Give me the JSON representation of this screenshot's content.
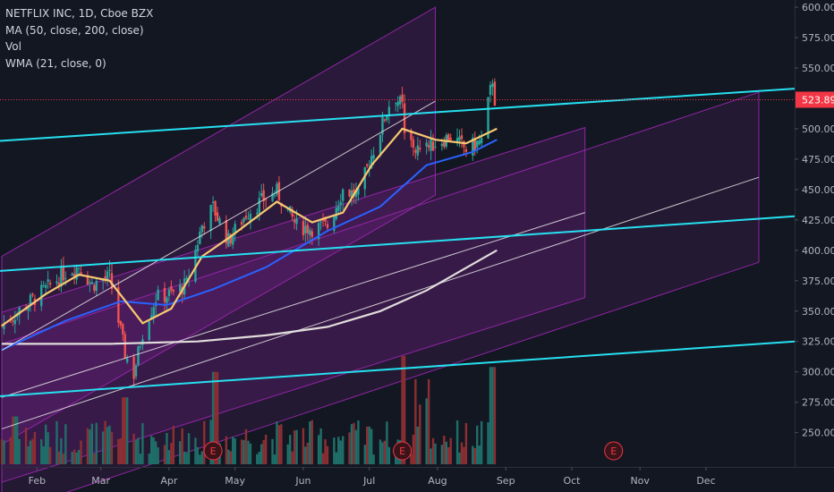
{
  "colors": {
    "background": "#131722",
    "candle_up": "#26a69a",
    "candle_down": "#ef5350",
    "vol_up": "#1f6f69",
    "vol_down": "#8c2f33",
    "ma50": "#2962ff",
    "ma200": "#e0dcdc",
    "wma21": "#f6c870",
    "channel": "#9c27b0",
    "trendline": "#26e0f0",
    "axis_text": "#b2b5be",
    "price_tag": "#f23645",
    "earnings": "#f23645"
  },
  "legend": {
    "symbol_line": "NETFLIX INC, 1D, Cboe BZX",
    "ma_line": "MA (50, close, 200, close)",
    "vol_line": "Vol",
    "wma_line": "WMA (21, close, 0)"
  },
  "chart_data": {
    "type": "candlestick",
    "title": "NETFLIX INC, 1D, Cboe BZX",
    "x_ticks": [
      "Feb",
      "Mar",
      "Apr",
      "May",
      "Jun",
      "Jul",
      "Aug",
      "Sep",
      "Oct",
      "Nov",
      "Dec"
    ],
    "y_ticks": [
      250,
      275,
      300,
      325,
      350,
      375,
      400,
      425,
      450,
      475,
      500,
      525,
      550,
      575,
      600
    ],
    "ylim": [
      235,
      603
    ],
    "last_price": "523.89",
    "last_price_value": 523.89,
    "date_range": [
      "2020-01-16",
      "2020-12-25"
    ],
    "earnings_markers": [
      {
        "label": "E",
        "date": "2020-04-21"
      },
      {
        "label": "E",
        "date": "2020-07-16"
      },
      {
        "label": "E",
        "date": "2020-10-20"
      }
    ],
    "price_points": [
      {
        "date": "2020-01-16",
        "close": 338
      },
      {
        "date": "2020-01-27",
        "close": 355
      },
      {
        "date": "2020-02-05",
        "close": 368
      },
      {
        "date": "2020-02-14",
        "close": 382
      },
      {
        "date": "2020-02-20",
        "close": 387
      },
      {
        "date": "2020-02-26",
        "close": 372
      },
      {
        "date": "2020-03-05",
        "close": 378
      },
      {
        "date": "2020-03-12",
        "close": 315
      },
      {
        "date": "2020-03-16",
        "close": 298
      },
      {
        "date": "2020-03-20",
        "close": 333
      },
      {
        "date": "2020-03-26",
        "close": 361
      },
      {
        "date": "2020-04-02",
        "close": 364
      },
      {
        "date": "2020-04-09",
        "close": 372
      },
      {
        "date": "2020-04-16",
        "close": 421
      },
      {
        "date": "2020-04-21",
        "close": 435
      },
      {
        "date": "2020-04-28",
        "close": 408
      },
      {
        "date": "2020-05-06",
        "close": 430
      },
      {
        "date": "2020-05-14",
        "close": 442
      },
      {
        "date": "2020-05-20",
        "close": 448
      },
      {
        "date": "2020-05-29",
        "close": 420
      },
      {
        "date": "2020-06-05",
        "close": 418
      },
      {
        "date": "2020-06-12",
        "close": 420
      },
      {
        "date": "2020-06-19",
        "close": 450
      },
      {
        "date": "2020-06-26",
        "close": 445
      },
      {
        "date": "2020-07-02",
        "close": 478
      },
      {
        "date": "2020-07-10",
        "close": 520
      },
      {
        "date": "2020-07-13",
        "close": 526
      },
      {
        "date": "2020-07-16",
        "close": 518
      },
      {
        "date": "2020-07-17",
        "close": 493
      },
      {
        "date": "2020-07-24",
        "close": 482
      },
      {
        "date": "2020-07-31",
        "close": 488
      },
      {
        "date": "2020-08-07",
        "close": 494
      },
      {
        "date": "2020-08-14",
        "close": 483
      },
      {
        "date": "2020-08-21",
        "close": 490
      },
      {
        "date": "2020-08-26",
        "close": 541
      },
      {
        "date": "2020-08-27",
        "close": 524
      }
    ],
    "ma50": [
      {
        "date": "2020-01-16",
        "close": 318
      },
      {
        "date": "2020-02-14",
        "close": 342
      },
      {
        "date": "2020-03-10",
        "close": 358
      },
      {
        "date": "2020-03-31",
        "close": 355
      },
      {
        "date": "2020-04-21",
        "close": 368
      },
      {
        "date": "2020-05-15",
        "close": 386
      },
      {
        "date": "2020-06-12",
        "close": 416
      },
      {
        "date": "2020-07-06",
        "close": 436
      },
      {
        "date": "2020-07-27",
        "close": 470
      },
      {
        "date": "2020-08-17",
        "close": 481
      },
      {
        "date": "2020-08-28",
        "close": 491
      }
    ],
    "ma200": [
      {
        "date": "2020-01-16",
        "close": 323
      },
      {
        "date": "2020-03-05",
        "close": 323
      },
      {
        "date": "2020-04-14",
        "close": 325
      },
      {
        "date": "2020-05-15",
        "close": 330
      },
      {
        "date": "2020-06-12",
        "close": 337
      },
      {
        "date": "2020-07-06",
        "close": 350
      },
      {
        "date": "2020-07-27",
        "close": 367
      },
      {
        "date": "2020-08-28",
        "close": 400
      }
    ],
    "wma21": [
      {
        "date": "2020-01-16",
        "close": 338
      },
      {
        "date": "2020-02-05",
        "close": 364
      },
      {
        "date": "2020-02-20",
        "close": 380
      },
      {
        "date": "2020-03-05",
        "close": 375
      },
      {
        "date": "2020-03-20",
        "close": 340
      },
      {
        "date": "2020-04-02",
        "close": 352
      },
      {
        "date": "2020-04-16",
        "close": 395
      },
      {
        "date": "2020-04-28",
        "close": 410
      },
      {
        "date": "2020-05-20",
        "close": 440
      },
      {
        "date": "2020-06-05",
        "close": 423
      },
      {
        "date": "2020-06-19",
        "close": 431
      },
      {
        "date": "2020-07-02",
        "close": 470
      },
      {
        "date": "2020-07-16",
        "close": 500
      },
      {
        "date": "2020-07-31",
        "close": 491
      },
      {
        "date": "2020-08-14",
        "close": 488
      },
      {
        "date": "2020-08-28",
        "close": 500
      }
    ],
    "volume_levels": [
      {
        "date": "2020-01-22",
        "level": 0.3
      },
      {
        "date": "2020-03-12",
        "level": 0.42
      },
      {
        "date": "2020-04-22",
        "level": 0.58
      },
      {
        "date": "2020-07-17",
        "level": 0.68
      },
      {
        "date": "2020-08-26",
        "level": 0.61
      }
    ],
    "channels": [
      {
        "from": {
          "date": "2020-01-16",
          "price": 395
        },
        "to": {
          "date": "2020-07-31",
          "price": 600
        }
      },
      {
        "from": {
          "date": "2020-01-16",
          "price": 349
        },
        "to": {
          "date": "2020-10-07",
          "price": 501
        }
      },
      {
        "from": {
          "date": "2020-01-16",
          "price": 323
        },
        "to": {
          "date": "2020-12-25",
          "price": 530
        }
      }
    ],
    "trendlines": [
      {
        "from": {
          "date": "2020-01-16",
          "price": 490
        },
        "to": {
          "date": "2020-12-25",
          "price": 533
        }
      },
      {
        "from": {
          "date": "2020-01-16",
          "price": 383
        },
        "to": {
          "date": "2020-12-25",
          "price": 428
        }
      },
      {
        "from": {
          "date": "2020-01-16",
          "price": 280
        },
        "to": {
          "date": "2020-12-25",
          "price": 325
        }
      }
    ]
  }
}
